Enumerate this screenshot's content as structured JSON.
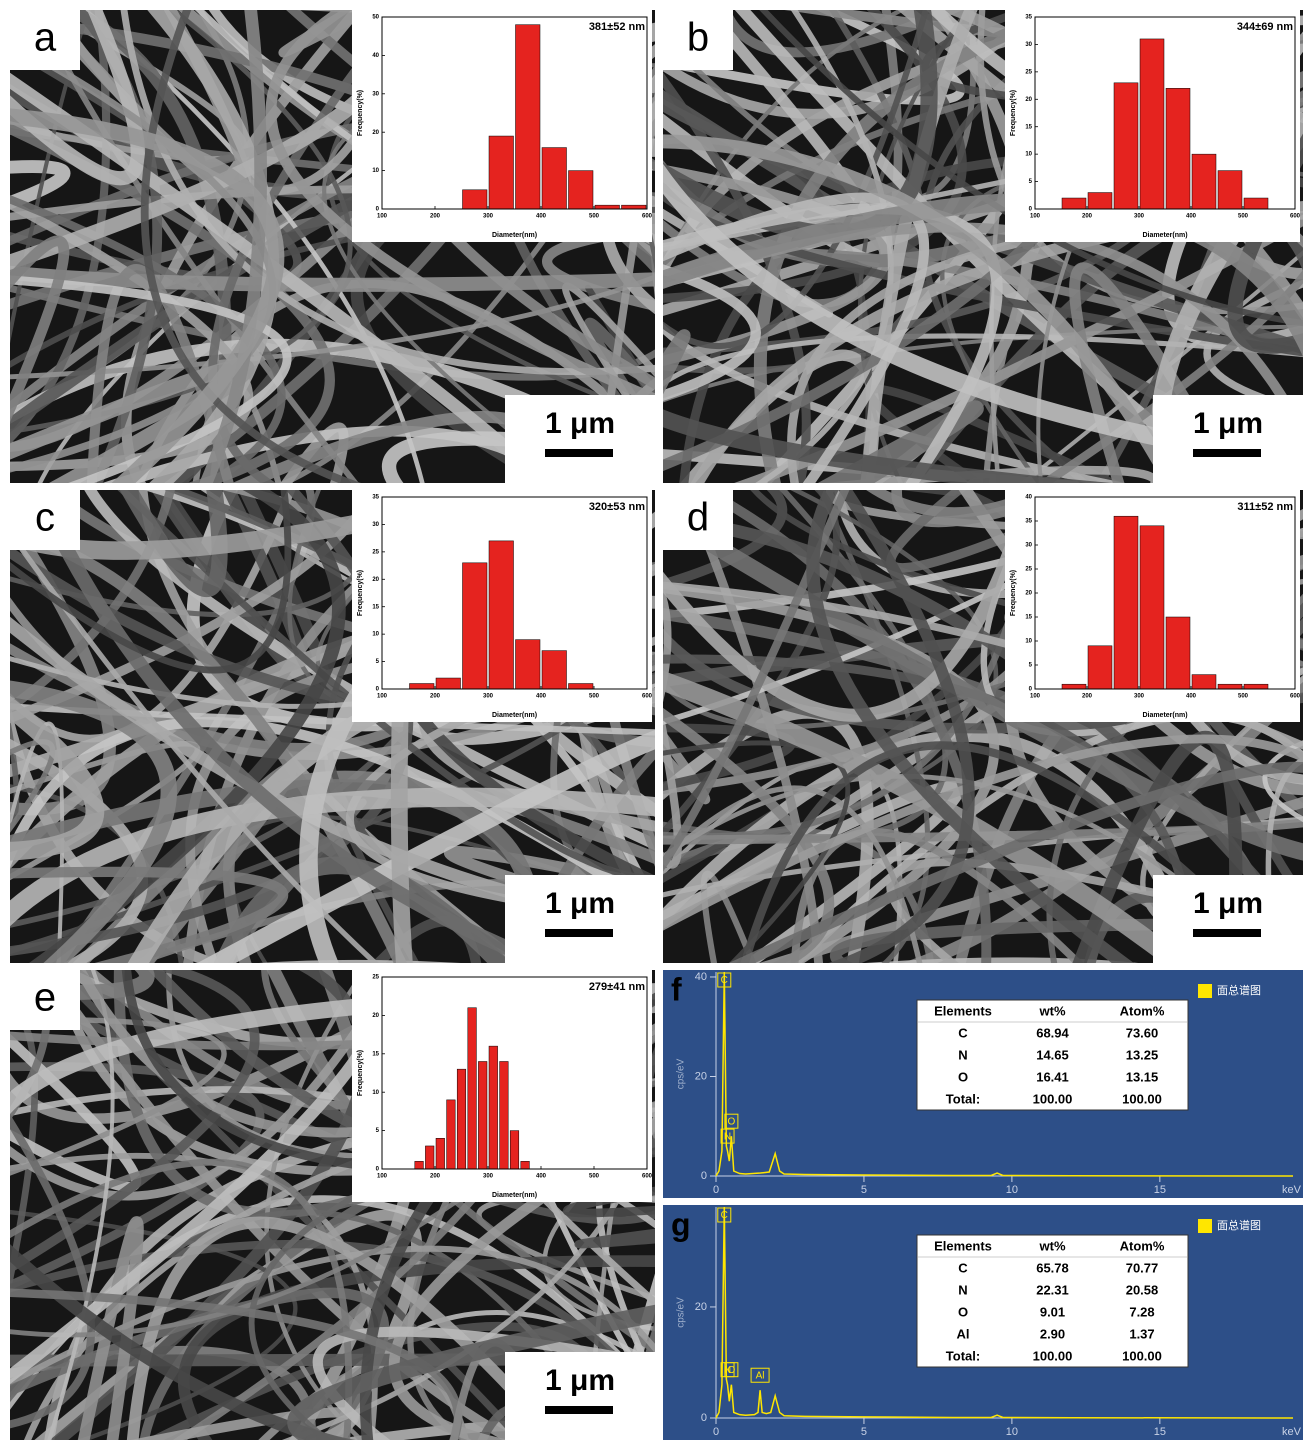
{
  "chart_data": [
    {
      "type": "histogram",
      "panel_label": "a",
      "annotation": "381±52 nm",
      "scale_bar": "1 μm",
      "x_label": "Diameter(nm)",
      "y_label": "Frequency(%)",
      "color": "#e5231f",
      "bins": [
        250,
        300,
        350,
        400,
        450,
        500,
        550,
        600
      ],
      "values": [
        5,
        19,
        48,
        16,
        10,
        1,
        1
      ],
      "xlim": [
        100,
        600
      ],
      "xticks": [
        100,
        200,
        300,
        400,
        500,
        600
      ],
      "ylim": [
        0,
        50
      ],
      "yticks": [
        0,
        10,
        20,
        30,
        40,
        50
      ]
    },
    {
      "type": "histogram",
      "panel_label": "b",
      "annotation": "344±69 nm",
      "scale_bar": "1 μm",
      "x_label": "Diameter(nm)",
      "y_label": "Frequency(%)",
      "color": "#e5231f",
      "bins": [
        150,
        200,
        250,
        300,
        350,
        400,
        450,
        500,
        550
      ],
      "values": [
        2,
        3,
        23,
        31,
        22,
        10,
        7,
        2
      ],
      "xlim": [
        100,
        600
      ],
      "xticks": [
        100,
        200,
        300,
        400,
        500,
        600
      ],
      "ylim": [
        0,
        35
      ],
      "yticks": [
        0,
        5,
        10,
        15,
        20,
        25,
        30,
        35
      ]
    },
    {
      "type": "histogram",
      "panel_label": "c",
      "annotation": "320±53 nm",
      "scale_bar": "1 μm",
      "x_label": "Diameter(nm)",
      "y_label": "Frequency(%)",
      "color": "#e5231f",
      "bins": [
        150,
        200,
        250,
        300,
        350,
        400,
        450,
        500
      ],
      "values": [
        1,
        2,
        23,
        27,
        9,
        7,
        1
      ],
      "xlim": [
        100,
        600
      ],
      "xticks": [
        100,
        200,
        300,
        400,
        500,
        600
      ],
      "ylim": [
        0,
        35
      ],
      "yticks": [
        0,
        5,
        10,
        15,
        20,
        25,
        30,
        35
      ]
    },
    {
      "type": "histogram",
      "panel_label": "d",
      "annotation": "311±52 nm",
      "scale_bar": "1 μm",
      "x_label": "Diameter(nm)",
      "y_label": "Frequency(%)",
      "color": "#e5231f",
      "bins": [
        150,
        200,
        250,
        300,
        350,
        400,
        450,
        500,
        550
      ],
      "values": [
        1,
        9,
        36,
        34,
        15,
        3,
        1,
        1
      ],
      "xlim": [
        100,
        600
      ],
      "xticks": [
        100,
        200,
        300,
        400,
        500,
        600
      ],
      "ylim": [
        0,
        40
      ],
      "yticks": [
        0,
        5,
        10,
        15,
        20,
        25,
        30,
        35,
        40
      ]
    },
    {
      "type": "histogram",
      "panel_label": "e",
      "annotation": "279±41 nm",
      "scale_bar": "1 μm",
      "x_label": "Diameter(nm)",
      "y_label": "Frequency(%)",
      "color": "#e5231f",
      "bins": [
        160,
        180,
        200,
        220,
        240,
        260,
        280,
        300,
        320,
        340,
        360,
        380
      ],
      "values": [
        1,
        3,
        4,
        9,
        13,
        21,
        14,
        16,
        14,
        5,
        1
      ],
      "xlim": [
        100,
        600
      ],
      "xticks": [
        100,
        200,
        300,
        400,
        500,
        600
      ],
      "ylim": [
        0,
        25
      ],
      "yticks": [
        0,
        5,
        10,
        15,
        20,
        25
      ]
    },
    {
      "type": "line",
      "panel_label": "f",
      "x_label": "keV",
      "y_label": "cps/eV",
      "x": [
        0,
        0.1,
        0.2,
        0.28,
        0.35,
        0.39,
        0.45,
        0.52,
        0.6,
        0.8,
        1.0,
        1.5,
        1.8,
        2.0,
        2.15,
        2.3,
        3,
        5,
        8,
        9.3,
        9.5,
        9.7,
        12,
        19.5
      ],
      "series": [
        {
          "name": "面总谱图",
          "color": "#ffe600",
          "values": [
            0,
            1,
            5,
            41,
            6,
            5,
            3,
            8,
            1,
            0.5,
            0.4,
            0.6,
            0.8,
            4.5,
            1,
            0.4,
            0.3,
            0.2,
            0.1,
            0.1,
            0.6,
            0.1,
            0.05,
            0
          ]
        }
      ],
      "peaks": [
        {
          "label": "C",
          "x": 0.28
        },
        {
          "label": "N",
          "x": 0.39
        },
        {
          "label": "O",
          "x": 0.52
        }
      ],
      "xlim": [
        0,
        19.5
      ],
      "xticks": [
        0,
        5,
        10,
        15
      ],
      "ylim": [
        0,
        41
      ],
      "yticks": [
        0,
        20,
        40
      ],
      "table": {
        "columns": [
          "Elements",
          "wt%",
          "Atom%"
        ],
        "rows": [
          [
            "C",
            "68.94",
            "73.60"
          ],
          [
            "N",
            "14.65",
            "13.25"
          ],
          [
            "O",
            "16.41",
            "13.15"
          ],
          [
            "Total:",
            "100.00",
            "100.00"
          ]
        ]
      }
    },
    {
      "type": "line",
      "panel_label": "g",
      "x_label": "keV",
      "y_label": "cps/eV",
      "x": [
        0,
        0.1,
        0.2,
        0.28,
        0.35,
        0.39,
        0.45,
        0.52,
        0.6,
        0.8,
        1.0,
        1.3,
        1.42,
        1.49,
        1.56,
        1.7,
        1.85,
        2.0,
        2.15,
        2.3,
        3,
        5,
        8,
        9.3,
        9.5,
        9.7,
        12,
        19.5
      ],
      "series": [
        {
          "name": "面总谱图",
          "color": "#ffe600",
          "values": [
            0,
            1,
            6,
            38,
            7,
            6,
            3,
            6,
            1,
            0.6,
            0.5,
            0.6,
            1,
            5,
            1,
            0.8,
            1,
            4,
            1,
            0.4,
            0.3,
            0.2,
            0.1,
            0.1,
            0.5,
            0.1,
            0.05,
            0
          ]
        }
      ],
      "peaks": [
        {
          "label": "C",
          "x": 0.28
        },
        {
          "label": "N",
          "x": 0.39
        },
        {
          "label": "O",
          "x": 0.52
        },
        {
          "label": "Al",
          "x": 1.49
        }
      ],
      "xlim": [
        0,
        19.5
      ],
      "xticks": [
        0,
        5,
        10,
        15
      ],
      "ylim": [
        0,
        38
      ],
      "yticks": [
        0,
        20
      ],
      "table": {
        "columns": [
          "Elements",
          "wt%",
          "Atom%"
        ],
        "rows": [
          [
            "C",
            "65.78",
            "70.77"
          ],
          [
            "N",
            "22.31",
            "20.58"
          ],
          [
            "O",
            "9.01",
            "7.28"
          ],
          [
            "Al",
            "2.90",
            "1.37"
          ],
          [
            "Total:",
            "100.00",
            "100.00"
          ]
        ]
      }
    }
  ]
}
